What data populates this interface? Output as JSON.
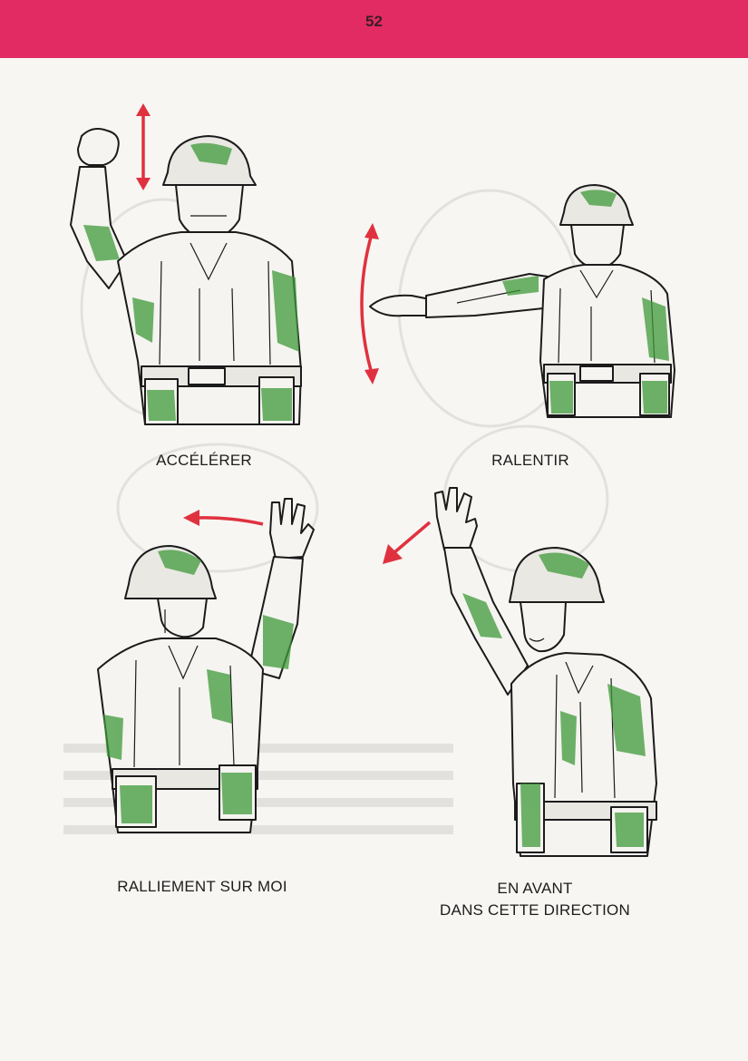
{
  "page": {
    "number": "52",
    "header_color": "#e22b63"
  },
  "signals": [
    {
      "id": "accelerer",
      "label": "ACCÉLÉRER"
    },
    {
      "id": "ralentir",
      "label": "RALENTIR"
    },
    {
      "id": "ralliement",
      "label": "RALLIEMENT SUR MOI"
    },
    {
      "id": "en-avant",
      "label_line1": "EN AVANT",
      "label_line2": "DANS CETTE DIRECTION"
    }
  ],
  "colors": {
    "arrow": "#e0313f",
    "camo": "#3f9a3a",
    "ink": "#1b1b1b",
    "paper": "#f7f6f3"
  }
}
